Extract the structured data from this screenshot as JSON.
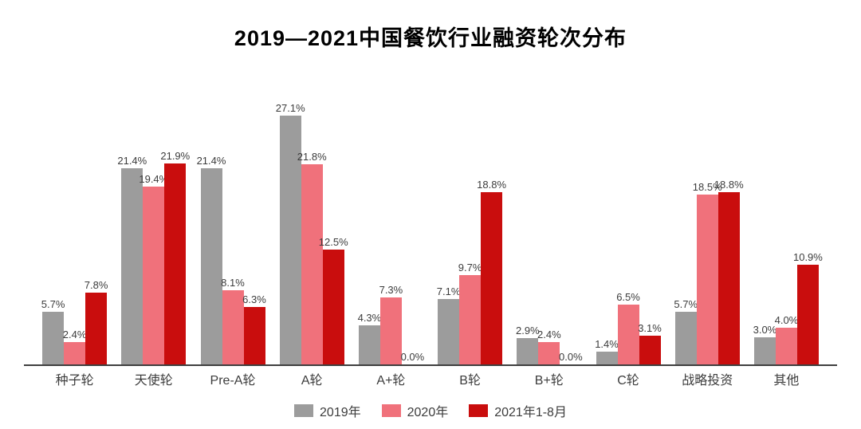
{
  "title": "2019—2021中国餐饮行业融资轮次分布",
  "colors": {
    "series_2019": "#9c9c9c",
    "series_2020": "#f0717b",
    "series_2021": "#c90d0d",
    "axis_line": "#3f3f3f",
    "label_text": "#3c3c3c",
    "background": "#ffffff"
  },
  "chart_data": {
    "type": "bar",
    "title": "2019—2021中国餐饮行业融资轮次分布",
    "categories": [
      "种子轮",
      "天使轮",
      "Pre-A轮",
      "A轮",
      "A+轮",
      "B轮",
      "B+轮",
      "C轮",
      "战略投资",
      "其他"
    ],
    "series": [
      {
        "name": "2019年",
        "color": "#9c9c9c",
        "values": [
          5.7,
          21.4,
          21.4,
          27.1,
          4.3,
          7.1,
          2.9,
          1.4,
          5.7,
          3.0
        ]
      },
      {
        "name": "2020年",
        "color": "#f0717b",
        "values": [
          2.4,
          19.4,
          8.1,
          21.8,
          7.3,
          9.7,
          2.4,
          6.5,
          18.5,
          4.0
        ]
      },
      {
        "name": "2021年1-8月",
        "color": "#c90d0d",
        "values": [
          7.8,
          21.9,
          6.3,
          12.5,
          0.0,
          18.8,
          0.0,
          3.1,
          18.8,
          10.9
        ]
      }
    ],
    "value_format": "one_decimal_percent",
    "data_labels": true,
    "xlabel": "",
    "ylabel": "",
    "ylim": [
      0,
      28
    ],
    "grid": false,
    "y_axis_visible": false,
    "legend_position": "bottom"
  }
}
